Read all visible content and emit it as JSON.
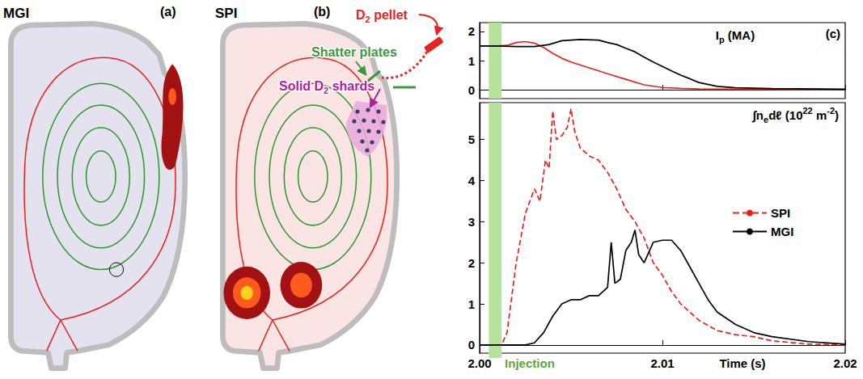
{
  "diagram": {
    "panels": [
      {
        "letter": "(a)",
        "title": "MGI"
      },
      {
        "letter": "(b)",
        "title": "SPI",
        "labels": {
          "pellet": [
            {
              "text": "D"
            },
            {
              "text": "2",
              "sub": true
            },
            {
              "text": " pellet"
            }
          ],
          "plates": "Shatter plates",
          "shards": [
            {
              "text": "Solid D"
            },
            {
              "text": "2",
              "sub": true
            },
            {
              "text": " shards"
            }
          ]
        }
      }
    ]
  },
  "chart_data": [
    {
      "type": "line",
      "panel": "(c)",
      "ylabel": [
        {
          "text": "I"
        },
        {
          "text": "p",
          "sub": true
        },
        {
          "text": " (MA)"
        }
      ],
      "xlim": [
        2.0,
        2.02
      ],
      "xticks": [
        {
          "value": 2.0,
          "label": "2.00"
        },
        2.01,
        2.02
      ],
      "ylim": [
        -0.3,
        2.3
      ],
      "yticks": [
        0,
        1,
        2
      ],
      "tick_labels": "y",
      "grid": false,
      "series": [
        {
          "name": "SPI",
          "color": "#e8231e",
          "line_style": "solid",
          "x": [
            2.0,
            2.001,
            2.0015,
            2.002,
            2.0025,
            2.003,
            2.0035,
            2.004,
            2.0045,
            2.005,
            2.006,
            2.007,
            2.008,
            2.009,
            2.01,
            2.011,
            2.012,
            2.014,
            2.017,
            2.02
          ],
          "values": [
            1.5,
            1.5,
            1.52,
            1.62,
            1.65,
            1.6,
            1.45,
            1.25,
            1.08,
            0.95,
            0.75,
            0.55,
            0.36,
            0.17,
            0.08,
            0.05,
            0.03,
            0.02,
            0.01,
            0.01
          ]
        },
        {
          "name": "MGI",
          "color": "#000000",
          "line_style": "solid",
          "x": [
            2.0,
            2.001,
            2.002,
            2.003,
            2.0038,
            2.0045,
            2.0055,
            2.0065,
            2.007,
            2.0075,
            2.008,
            2.0085,
            2.009,
            2.0095,
            2.01,
            2.0105,
            2.011,
            2.0115,
            2.012,
            2.013,
            2.014,
            2.016,
            2.02
          ],
          "values": [
            1.5,
            1.5,
            1.48,
            1.48,
            1.55,
            1.68,
            1.72,
            1.7,
            1.62,
            1.55,
            1.42,
            1.3,
            1.12,
            0.95,
            0.8,
            0.65,
            0.5,
            0.38,
            0.25,
            0.12,
            0.07,
            0.04,
            0.02
          ]
        }
      ]
    },
    {
      "type": "line",
      "xlabel": "Time (s)",
      "ylabel": [
        {
          "text": "∫n"
        },
        {
          "text": "e",
          "sub": true
        },
        {
          "text": "dℓ (10"
        },
        {
          "text": "22",
          "sup": true
        },
        {
          "text": " m"
        },
        {
          "text": "-2",
          "sup": true
        },
        {
          "text": ")"
        }
      ],
      "xlim": [
        2.0,
        2.02
      ],
      "xticks": [
        {
          "value": 2.0,
          "label": "2.00"
        },
        2.01,
        2.02
      ],
      "ylim": [
        -0.2,
        5.9
      ],
      "yticks": [
        0,
        1,
        2,
        3,
        4,
        5
      ],
      "grid": false,
      "legend": "right",
      "annotation": {
        "text": "Injection",
        "x": [
          2.0005,
          2.0012
        ],
        "color": "#b5e39b"
      },
      "series": [
        {
          "name": "SPI",
          "color": "#e8231e",
          "line_style": "dashed",
          "x": [
            2.0,
            2.0012,
            2.0015,
            2.002,
            2.0025,
            2.003,
            2.0033,
            2.0036,
            2.0038,
            2.004,
            2.0042,
            2.0045,
            2.0048,
            2.005,
            2.0052,
            2.0055,
            2.006,
            2.0065,
            2.007,
            2.0075,
            2.008,
            2.0085,
            2.009,
            2.0095,
            2.01,
            2.0105,
            2.011,
            2.0115,
            2.012,
            2.013,
            2.014,
            2.015,
            2.016,
            2.018,
            2.02
          ],
          "values": [
            0,
            0,
            0.3,
            2.0,
            3.2,
            3.8,
            3.5,
            4.5,
            4.3,
            5.7,
            5.0,
            5.1,
            5.3,
            5.75,
            5.2,
            4.8,
            4.6,
            4.5,
            4.2,
            3.8,
            3.3,
            3.0,
            2.6,
            2.0,
            1.7,
            1.3,
            1.0,
            0.8,
            0.6,
            0.35,
            0.25,
            0.2,
            0.1,
            0.02,
            0
          ]
        },
        {
          "name": "MGI",
          "color": "#000000",
          "line_style": "solid",
          "x": [
            2.0,
            2.0025,
            2.003,
            2.0035,
            2.004,
            2.0045,
            2.005,
            2.0055,
            2.006,
            2.0065,
            2.007,
            2.0072,
            2.0074,
            2.0077,
            2.008,
            2.0083,
            2.0085,
            2.0087,
            2.009,
            2.0093,
            2.0095,
            2.01,
            2.0105,
            2.011,
            2.0115,
            2.012,
            2.0125,
            2.013,
            2.014,
            2.015,
            2.016,
            2.018,
            2.02
          ],
          "values": [
            0,
            0,
            0.05,
            0.3,
            0.7,
            1.0,
            1.1,
            1.1,
            1.2,
            1.2,
            1.4,
            2.5,
            1.5,
            1.6,
            2.3,
            2.5,
            2.8,
            2.2,
            2.0,
            2.3,
            2.5,
            2.55,
            2.55,
            2.3,
            1.9,
            1.5,
            1.1,
            0.8,
            0.5,
            0.3,
            0.2,
            0.08,
            0.02
          ]
        }
      ]
    }
  ]
}
